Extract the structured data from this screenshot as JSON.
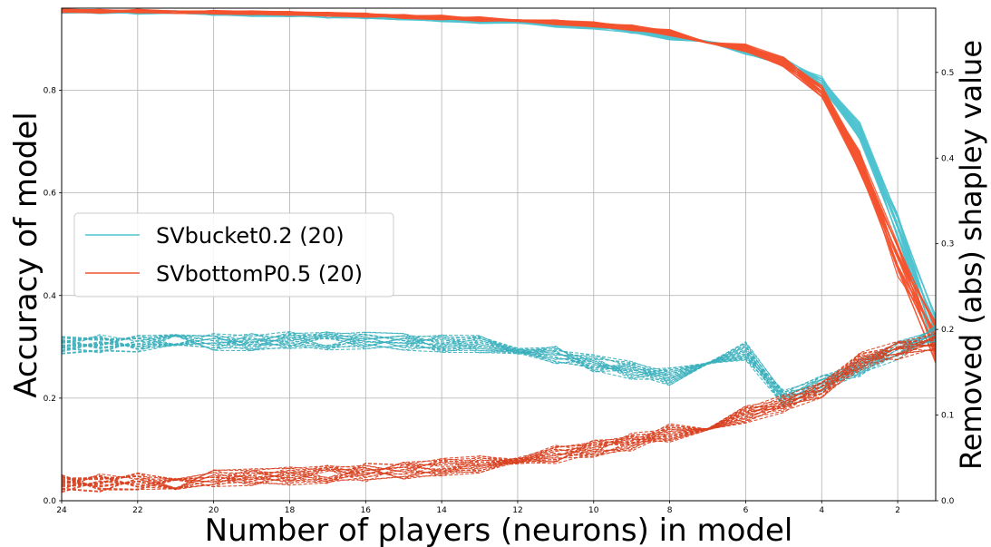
{
  "chart_data": {
    "type": "line",
    "xlabel": "Number of players (neurons) in model",
    "ylabel_left": "Accuracy of model",
    "ylabel_right": "Removed (abs) shapley value",
    "x_ticks": [
      24,
      22,
      20,
      18,
      16,
      14,
      12,
      10,
      8,
      6,
      4,
      2
    ],
    "y_left_ticks": [
      "0.0",
      "0.2",
      "0.4",
      "0.6",
      "0.8"
    ],
    "y_right_ticks": [
      "0.0",
      "0.1",
      "0.2",
      "0.3",
      "0.4",
      "0.5"
    ],
    "xlim": [
      24,
      1
    ],
    "ylim_left": [
      0,
      0.96
    ],
    "ylim_right": [
      0,
      0.575
    ],
    "grid": true,
    "legend_position": "center-left",
    "legend": [
      {
        "label": "SVbucket0.2 (20)",
        "color": "#4fc3cf"
      },
      {
        "label": "SVbottomP0.5 (20)",
        "color": "#f4532f"
      }
    ],
    "x": [
      24,
      23,
      22,
      21,
      20,
      19,
      18,
      17,
      16,
      15,
      14,
      13,
      12,
      11,
      10,
      9,
      8,
      7,
      6,
      5,
      4,
      3,
      2,
      1
    ],
    "series": [
      {
        "name": "SVbucket0.2 (20)",
        "axis": "left",
        "style": "solid",
        "color": "#4fc3cf",
        "values": [
          0.954,
          0.953,
          0.952,
          0.951,
          0.95,
          0.948,
          0.947,
          0.945,
          0.943,
          0.941,
          0.938,
          0.935,
          0.932,
          0.928,
          0.924,
          0.917,
          0.905,
          0.892,
          0.878,
          0.855,
          0.815,
          0.72,
          0.53,
          0.32
        ]
      },
      {
        "name": "SVbottomP0.5 (20)",
        "axis": "left",
        "style": "solid",
        "color": "#f4532f",
        "values": [
          0.955,
          0.954,
          0.954,
          0.953,
          0.952,
          0.951,
          0.95,
          0.948,
          0.946,
          0.944,
          0.942,
          0.939,
          0.936,
          0.932,
          0.928,
          0.922,
          0.912,
          0.897,
          0.882,
          0.855,
          0.8,
          0.66,
          0.47,
          0.31
        ]
      },
      {
        "name": "",
        "axis": "right",
        "style": "dashed",
        "color": "#3bb0bc",
        "values": [
          0.182,
          0.183,
          0.184,
          0.185,
          0.186,
          0.186,
          0.187,
          0.187,
          0.186,
          0.185,
          0.184,
          0.183,
          0.176,
          0.17,
          0.16,
          0.152,
          0.145,
          0.156,
          0.175,
          0.118,
          0.138,
          0.155,
          0.175,
          0.195
        ]
      },
      {
        "name": "",
        "axis": "right",
        "style": "dashed",
        "color": "#d8401f",
        "values": [
          0.02,
          0.021,
          0.022,
          0.023,
          0.025,
          0.027,
          0.029,
          0.031,
          0.033,
          0.036,
          0.039,
          0.043,
          0.049,
          0.054,
          0.061,
          0.069,
          0.079,
          0.09,
          0.101,
          0.113,
          0.13,
          0.162,
          0.175,
          0.185
        ]
      }
    ]
  }
}
